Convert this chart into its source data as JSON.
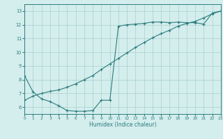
{
  "xlabel": "Humidex (Indice chaleur)",
  "line1_x": [
    0,
    1,
    2,
    3,
    4,
    5,
    6,
    7,
    8,
    9,
    10,
    11,
    12,
    13,
    14,
    15,
    16,
    17,
    18,
    19,
    20,
    21,
    22,
    23
  ],
  "line1_y": [
    8.3,
    7.1,
    6.6,
    6.4,
    6.1,
    5.75,
    5.7,
    5.7,
    5.75,
    6.5,
    6.5,
    11.9,
    12.0,
    12.05,
    12.1,
    12.2,
    12.2,
    12.15,
    12.2,
    12.15,
    12.15,
    12.05,
    12.85,
    13.0
  ],
  "line2_x": [
    0,
    1,
    2,
    3,
    4,
    5,
    6,
    7,
    8,
    9,
    10,
    11,
    12,
    13,
    14,
    15,
    16,
    17,
    18,
    19,
    20,
    21,
    22,
    23
  ],
  "line2_y": [
    6.5,
    6.8,
    7.0,
    7.15,
    7.25,
    7.45,
    7.7,
    8.0,
    8.3,
    8.75,
    9.15,
    9.55,
    9.95,
    10.35,
    10.7,
    11.05,
    11.35,
    11.6,
    11.9,
    12.1,
    12.25,
    12.5,
    12.8,
    13.0
  ],
  "line_color": "#2d7d7d",
  "bg_color": "#d4eded",
  "grid_color": "#aacfcf",
  "xlim": [
    0,
    23
  ],
  "ylim": [
    5.5,
    13.5
  ],
  "xticks": [
    0,
    1,
    2,
    3,
    4,
    5,
    6,
    7,
    8,
    9,
    10,
    11,
    12,
    13,
    14,
    15,
    16,
    17,
    18,
    19,
    20,
    21,
    22,
    23
  ],
  "yticks": [
    6,
    7,
    8,
    9,
    10,
    11,
    12,
    13
  ],
  "marker_size": 3.0,
  "linewidth": 0.8
}
